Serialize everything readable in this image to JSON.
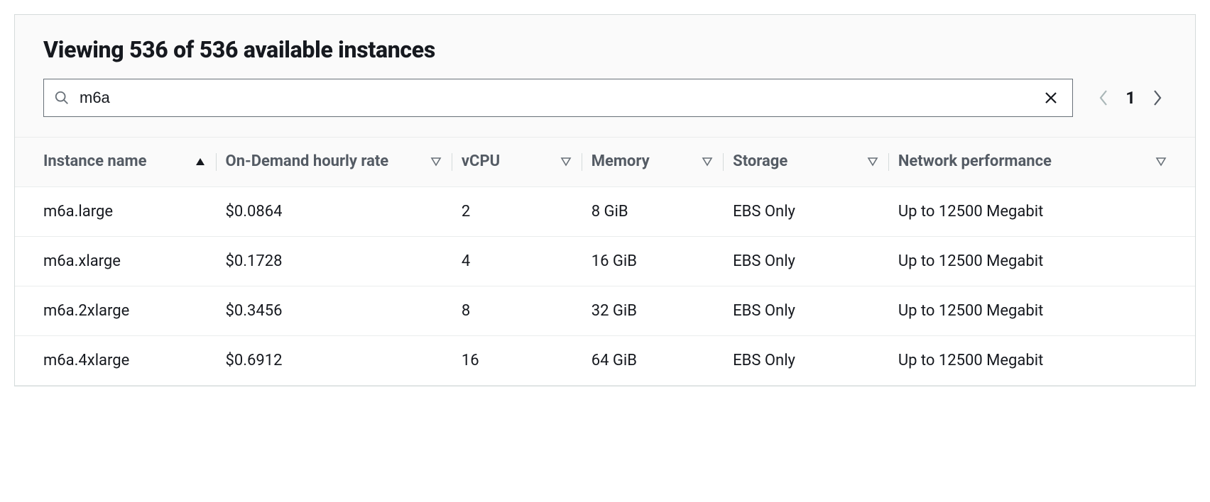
{
  "header": {
    "title": "Viewing 536 of 536 available instances"
  },
  "search": {
    "value": "m6a"
  },
  "pagination": {
    "page": "1",
    "prev_enabled": false,
    "next_enabled": true
  },
  "table": {
    "columns": [
      {
        "label": "Instance name",
        "sort": "asc",
        "width": "17%"
      },
      {
        "label": "On-Demand hourly rate",
        "sort": "none",
        "width": "20%"
      },
      {
        "label": "vCPU",
        "sort": "none",
        "width": "11%"
      },
      {
        "label": "Memory",
        "sort": "none",
        "width": "12%"
      },
      {
        "label": "Storage",
        "sort": "none",
        "width": "14%"
      },
      {
        "label": "Network performance",
        "sort": "none",
        "width": "26%"
      }
    ],
    "rows": [
      [
        "m6a.large",
        "$0.0864",
        "2",
        "8 GiB",
        "EBS Only",
        "Up to 12500 Megabit"
      ],
      [
        "m6a.xlarge",
        "$0.1728",
        "4",
        "16 GiB",
        "EBS Only",
        "Up to 12500 Megabit"
      ],
      [
        "m6a.2xlarge",
        "$0.3456",
        "8",
        "32 GiB",
        "EBS Only",
        "Up to 12500 Megabit"
      ],
      [
        "m6a.4xlarge",
        "$0.6912",
        "16",
        "64 GiB",
        "EBS Only",
        "Up to 12500 Megabit"
      ]
    ]
  },
  "colors": {
    "border": "#d5dbdb",
    "header_bg": "#fafafa",
    "text": "#16191f",
    "muted": "#545b64",
    "row_border": "#eaeded"
  }
}
